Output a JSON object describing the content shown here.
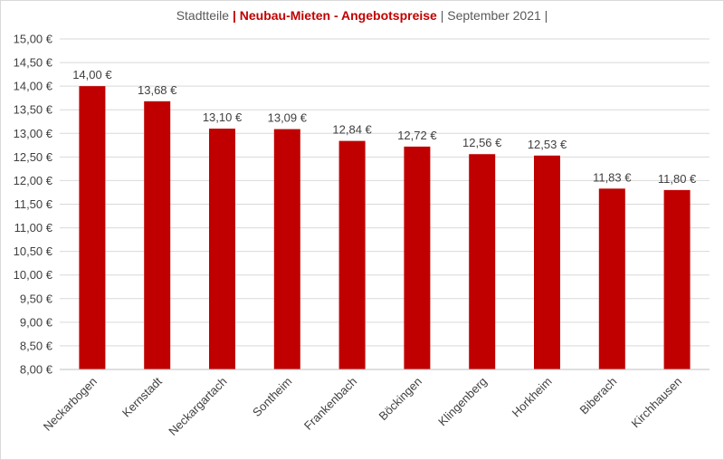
{
  "title": {
    "prefix": "Stadtteile ",
    "highlight": "| Neubau-Mieten - Angebotspreise",
    "suffix": " | September 2021 |"
  },
  "colors": {
    "bar": "#c00000",
    "grid": "#d9d9d9",
    "text": "#404040"
  },
  "chart_data": {
    "type": "bar",
    "title": "Stadtteile | Neubau-Mieten - Angebotspreise | September 2021 |",
    "categories": [
      "Neckarbogen",
      "Kernstadt",
      "Neckargartach",
      "Sontheim",
      "Frankenbach",
      "Böckingen",
      "Klingenberg",
      "Horkheim",
      "Biberach",
      "Kirchhausen"
    ],
    "values": [
      14.0,
      13.68,
      13.1,
      13.09,
      12.84,
      12.72,
      12.56,
      12.53,
      11.83,
      11.8
    ],
    "data_labels": [
      "14,00 €",
      "13,68 €",
      "13,10 €",
      "13,09 €",
      "12,84 €",
      "12,72 €",
      "12,56 €",
      "12,53 €",
      "11,83 €",
      "11,80 €"
    ],
    "ylim": [
      8,
      15
    ],
    "yticks": [
      8,
      8.5,
      9,
      9.5,
      10,
      10.5,
      11,
      11.5,
      12,
      12.5,
      13,
      13.5,
      14,
      14.5,
      15
    ],
    "ytick_labels": [
      "8,00 €",
      "8,50 €",
      "9,00 €",
      "9,50 €",
      "10,00 €",
      "10,50 €",
      "11,00 €",
      "11,50 €",
      "12,00 €",
      "12,50 €",
      "13,00 €",
      "13,50 €",
      "14,00 €",
      "14,50 €",
      "15,00 €"
    ],
    "grid": true,
    "legend": "none"
  }
}
